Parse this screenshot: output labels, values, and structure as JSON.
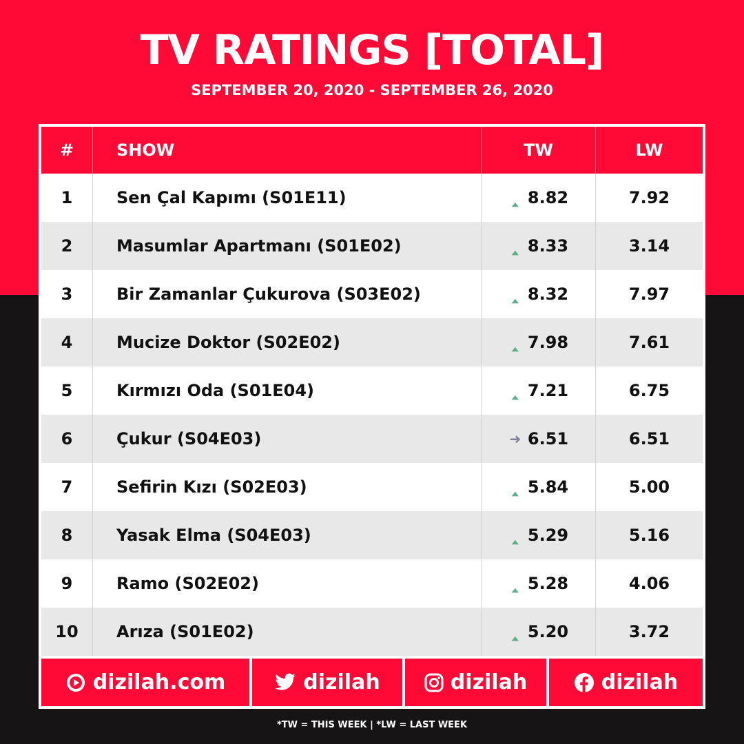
{
  "header": {
    "title": "TV RATINGS [TOTAL]",
    "subtitle": "SEPTEMBER 20, 2020 - SEPTEMBER 26, 2020"
  },
  "table": {
    "columns": {
      "rank": "#",
      "show": "SHOW",
      "tw": "TW",
      "lw": "LW"
    },
    "rows": [
      {
        "rank": "1",
        "show": "Sen Çal Kapımı (S01E11)",
        "trend": "up",
        "tw": "8.82",
        "lw": "7.92"
      },
      {
        "rank": "2",
        "show": "Masumlar Apartmanı (S01E02)",
        "trend": "up",
        "tw": "8.33",
        "lw": "3.14"
      },
      {
        "rank": "3",
        "show": "Bir Zamanlar Çukurova (S03E02)",
        "trend": "up",
        "tw": "8.32",
        "lw": "7.97"
      },
      {
        "rank": "4",
        "show": "Mucize Doktor (S02E02)",
        "trend": "up",
        "tw": "7.98",
        "lw": "7.61"
      },
      {
        "rank": "5",
        "show": "Kırmızı Oda (S01E04)",
        "trend": "up",
        "tw": "7.21",
        "lw": "6.75"
      },
      {
        "rank": "6",
        "show": "Çukur (S04E03)",
        "trend": "same",
        "tw": "6.51",
        "lw": "6.51"
      },
      {
        "rank": "7",
        "show": "Sefirin Kızı (S02E03)",
        "trend": "up",
        "tw": "5.84",
        "lw": "5.00"
      },
      {
        "rank": "8",
        "show": "Yasak Elma (S04E03)",
        "trend": "up",
        "tw": "5.29",
        "lw": "5.16"
      },
      {
        "rank": "9",
        "show": "Ramo (S02E02)",
        "trend": "up",
        "tw": "5.28",
        "lw": "4.06"
      },
      {
        "rank": "10",
        "show": "Arıza (S01E02)",
        "trend": "up",
        "tw": "5.20",
        "lw": "3.72"
      }
    ]
  },
  "footer": {
    "website": "dizilah.com",
    "twitter": "dizilah",
    "instagram": "dizilah",
    "facebook": "dizilah"
  },
  "note": "*TW = THIS WEEK | *LW = LAST WEEK",
  "colors": {
    "brand_red": "#ff0a37",
    "dark_bg": "#161415",
    "trend_up": "#5fae8a",
    "trend_same": "#7c7f9c"
  },
  "icons": {
    "up": "arrow-up-icon",
    "same": "arrow-right-icon"
  }
}
